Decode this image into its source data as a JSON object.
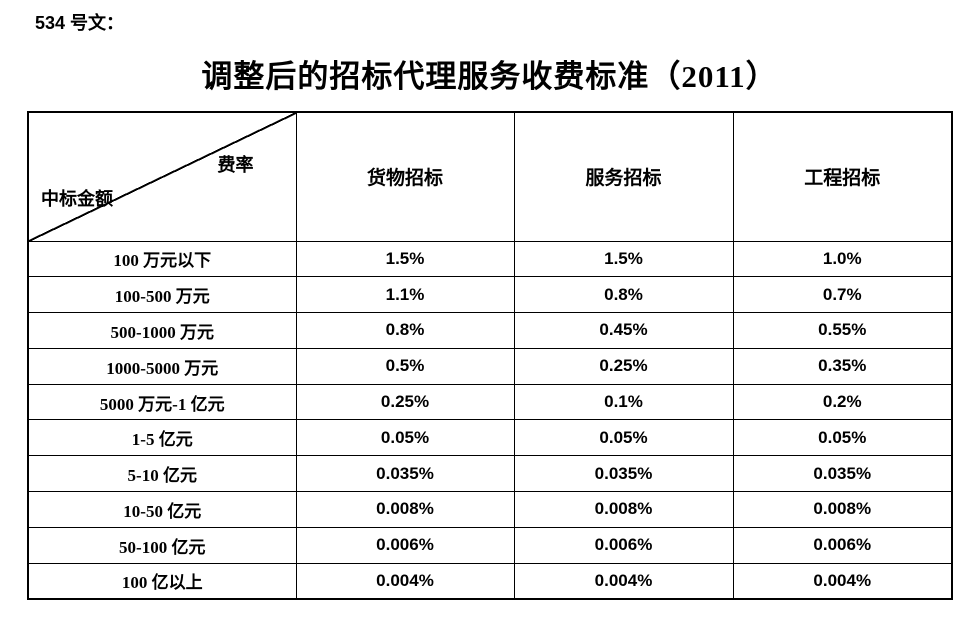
{
  "doc": {
    "ref_label": "534 号文：",
    "title": "调整后的招标代理服务收费标准（2011）"
  },
  "table": {
    "corner": {
      "top_right_label": "费率",
      "bottom_left_label": "中标金额"
    },
    "columns": [
      "货物招标",
      "服务招标",
      "工程招标"
    ],
    "rows": [
      {
        "amount": "100 万元以下",
        "goods": "1.5%",
        "services": "1.5%",
        "engineering": "1.0%"
      },
      {
        "amount": "100-500 万元",
        "goods": "1.1%",
        "services": "0.8%",
        "engineering": "0.7%"
      },
      {
        "amount": "500-1000 万元",
        "goods": "0.8%",
        "services": "0.45%",
        "engineering": "0.55%"
      },
      {
        "amount": "1000-5000 万元",
        "goods": "0.5%",
        "services": "0.25%",
        "engineering": "0.35%"
      },
      {
        "amount": "5000 万元-1 亿元",
        "goods": "0.25%",
        "services": "0.1%",
        "engineering": "0.2%"
      },
      {
        "amount": "1-5 亿元",
        "goods": "0.05%",
        "services": "0.05%",
        "engineering": "0.05%"
      },
      {
        "amount": "5-10 亿元",
        "goods": "0.035%",
        "services": "0.035%",
        "engineering": "0.035%"
      },
      {
        "amount": "10-50 亿元",
        "goods": "0.008%",
        "services": "0.008%",
        "engineering": "0.008%"
      },
      {
        "amount": "50-100 亿元",
        "goods": "0.006%",
        "services": "0.006%",
        "engineering": "0.006%"
      },
      {
        "amount": "100 亿以上",
        "goods": "0.004%",
        "services": "0.004%",
        "engineering": "0.004%"
      }
    ]
  },
  "colors": {
    "text": "#000000",
    "border": "#000000",
    "background": "#ffffff"
  }
}
